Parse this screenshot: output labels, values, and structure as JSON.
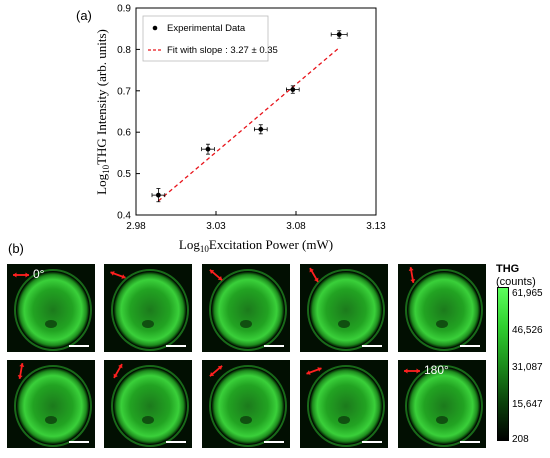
{
  "panels": {
    "a": "(a)",
    "b": "(b)"
  },
  "chart_data": {
    "type": "scatter",
    "xlabel_prefix": "Log",
    "xlabel_sub": "10",
    "xlabel_rest": "Excitation Power (mW)",
    "ylabel_prefix": "Log",
    "ylabel_sub": "10",
    "ylabel_rest": "THG Intensity (arb. units)",
    "xlim": [
      2.98,
      3.13
    ],
    "ylim": [
      0.4,
      0.9
    ],
    "xticks": [
      2.98,
      3.03,
      3.08,
      3.13
    ],
    "xtick_labels": [
      "2.98",
      "3.03",
      "3.08",
      "3.13"
    ],
    "yticks": [
      0.4,
      0.5,
      0.6,
      0.7,
      0.8,
      0.9
    ],
    "ytick_labels": [
      "0.4",
      "0.5",
      "0.6",
      "0.7",
      "0.8",
      "0.9"
    ],
    "series": [
      {
        "name": "Experimental Data",
        "points": [
          {
            "x": 2.994,
            "y": 0.448,
            "xerr": 0.004,
            "yerr": 0.016
          },
          {
            "x": 3.025,
            "y": 0.559,
            "xerr": 0.004,
            "yerr": 0.012
          },
          {
            "x": 3.058,
            "y": 0.607,
            "xerr": 0.004,
            "yerr": 0.011
          },
          {
            "x": 3.078,
            "y": 0.703,
            "xerr": 0.004,
            "yerr": 0.009
          },
          {
            "x": 3.107,
            "y": 0.836,
            "xerr": 0.005,
            "yerr": 0.009
          }
        ]
      },
      {
        "name": "Fit with slope : 3.27 ± 0.35",
        "line": [
          {
            "x": 2.994,
            "y": 0.434
          },
          {
            "x": 3.107,
            "y": 0.804
          }
        ]
      }
    ],
    "legend_position": "top-left",
    "grid": false
  },
  "colors": {
    "fit_line": "#e8141b",
    "marker": "#000000",
    "arrow": "#ff2020"
  },
  "images": {
    "rows": [
      [
        {
          "angle": 0,
          "label": "0°"
        },
        {
          "angle": 20
        },
        {
          "angle": 40
        },
        {
          "angle": 60
        },
        {
          "angle": 80
        }
      ],
      [
        {
          "angle": 100
        },
        {
          "angle": 120
        },
        {
          "angle": 140
        },
        {
          "angle": 160
        },
        {
          "angle": 180,
          "label": "180°"
        }
      ]
    ]
  },
  "colorbar": {
    "title": "THG",
    "unit": "(counts)",
    "ticks": [
      "61,965",
      "46,526",
      "31,087",
      "15,647",
      "208"
    ]
  }
}
